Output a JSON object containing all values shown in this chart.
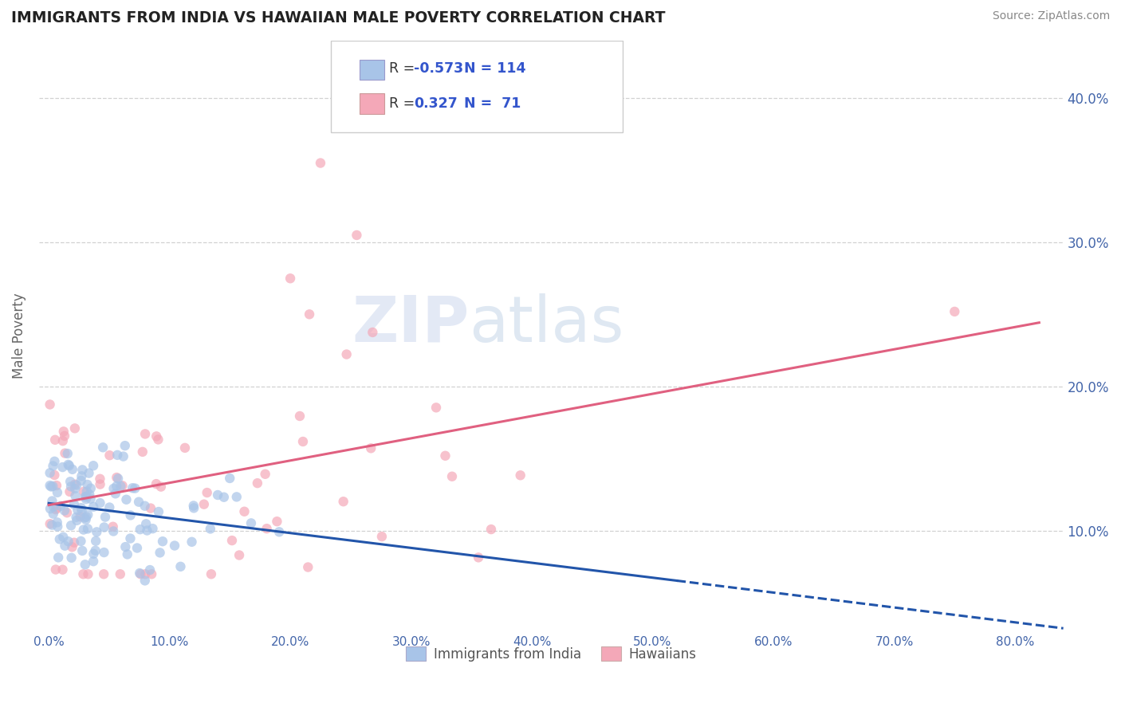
{
  "title": "IMMIGRANTS FROM INDIA VS HAWAIIAN MALE POVERTY CORRELATION CHART",
  "source": "Source: ZipAtlas.com",
  "ylabel": "Male Poverty",
  "legend_labels": [
    "Immigrants from India",
    "Hawaiians"
  ],
  "r_values": [
    -0.573,
    0.327
  ],
  "n_values": [
    114,
    71
  ],
  "blue_color": "#a8c4e8",
  "pink_color": "#f4a8b8",
  "blue_line_color": "#2255aa",
  "pink_line_color": "#e06080",
  "watermark_zip": "ZIP",
  "watermark_atlas": "atlas",
  "x_tick_vals": [
    0.0,
    0.1,
    0.2,
    0.3,
    0.4,
    0.5,
    0.6,
    0.7,
    0.8
  ],
  "x_tick_labels": [
    "0.0%",
    "10.0%",
    "20.0%",
    "30.0%",
    "40.0%",
    "50.0%",
    "60.0%",
    "70.0%",
    "80.0%"
  ],
  "y_tick_vals": [
    0.1,
    0.2,
    0.3,
    0.4
  ],
  "y_tick_labels": [
    "10.0%",
    "20.0%",
    "30.0%",
    "40.0%"
  ],
  "xlim": [
    -0.008,
    0.84
  ],
  "ylim": [
    0.03,
    0.44
  ]
}
